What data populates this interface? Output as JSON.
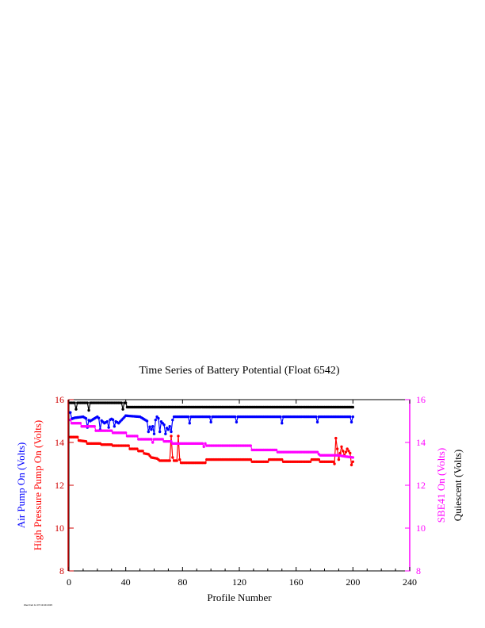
{
  "chart_data": {
    "type": "line",
    "title": "Time Series of Battery Potential (Float 6542)",
    "xlabel": "Profile Number",
    "ylabel_left": [
      "Air Pump On (Volts)",
      "High Pressure Pump On (Volts)"
    ],
    "ylabel_right": [
      "SBE41 On (Volts)",
      "Quiescent (Volts)"
    ],
    "xlim": [
      0,
      240
    ],
    "ylim_left": [
      8,
      16
    ],
    "ylim_right": [
      8,
      16
    ],
    "x_ticks": [
      0,
      40,
      80,
      120,
      160,
      200,
      240
    ],
    "y_ticks_left": [
      8,
      10,
      12,
      14,
      16
    ],
    "y_ticks_right": [
      8,
      10,
      12,
      14,
      16
    ],
    "grid": false,
    "series": [
      {
        "name": "Quiescent (Volts)",
        "color": "#000000",
        "axis": "right",
        "segments": [
          [
            1,
            15.85
          ],
          [
            40,
            15.85
          ],
          [
            40,
            15.65
          ],
          [
            200,
            15.65
          ]
        ],
        "spikes": [
          [
            5,
            15.55
          ],
          [
            14,
            15.5
          ],
          [
            38,
            15.55
          ]
        ]
      },
      {
        "name": "Air Pump On (Volts)",
        "color": "#0000ff",
        "axis": "left",
        "segments": [
          [
            1,
            15.4
          ],
          [
            2,
            15.1
          ],
          [
            4,
            15.15
          ],
          [
            10,
            15.2
          ],
          [
            15,
            15.0
          ],
          [
            20,
            15.2
          ],
          [
            25,
            14.9
          ],
          [
            30,
            15.1
          ],
          [
            35,
            14.9
          ],
          [
            40,
            15.25
          ],
          [
            50,
            15.2
          ],
          [
            55,
            15.0
          ],
          [
            58,
            14.6
          ],
          [
            62,
            15.2
          ],
          [
            66,
            14.9
          ],
          [
            70,
            14.6
          ],
          [
            74,
            15.2
          ],
          [
            200,
            15.2
          ]
        ],
        "spikes": [
          [
            13,
            14.7
          ],
          [
            22,
            14.6
          ],
          [
            28,
            14.7
          ],
          [
            32,
            14.75
          ],
          [
            56,
            14.5
          ],
          [
            60,
            14.4
          ],
          [
            64,
            14.5
          ],
          [
            68,
            14.4
          ],
          [
            72,
            14.5
          ],
          [
            85,
            14.9
          ],
          [
            100,
            14.95
          ],
          [
            118,
            14.95
          ],
          [
            150,
            14.9
          ],
          [
            175,
            14.95
          ],
          [
            199,
            14.95
          ]
        ]
      },
      {
        "name": "High Pressure Pump On (Volts)",
        "color": "#ff0000",
        "axis": "left",
        "segments": [
          [
            1,
            14.25
          ],
          [
            6,
            14.25
          ],
          [
            6,
            14.1
          ],
          [
            12,
            14.05
          ],
          [
            12,
            13.95
          ],
          [
            22,
            13.95
          ],
          [
            22,
            13.9
          ],
          [
            30,
            13.9
          ],
          [
            30,
            13.85
          ],
          [
            42,
            13.85
          ],
          [
            42,
            13.7
          ],
          [
            48,
            13.7
          ],
          [
            48,
            13.6
          ],
          [
            52,
            13.6
          ],
          [
            52,
            13.5
          ],
          [
            56,
            13.45
          ],
          [
            58,
            13.3
          ],
          [
            62,
            13.25
          ],
          [
            64,
            13.15
          ],
          [
            76,
            13.15
          ],
          [
            76,
            13.05
          ],
          [
            96,
            13.05
          ],
          [
            96,
            13.2
          ],
          [
            128,
            13.2
          ],
          [
            128,
            13.1
          ],
          [
            140,
            13.1
          ],
          [
            140,
            13.2
          ],
          [
            150,
            13.2
          ],
          [
            150,
            13.1
          ],
          [
            170,
            13.1
          ],
          [
            170,
            13.2
          ],
          [
            176,
            13.2
          ],
          [
            176,
            13.1
          ],
          [
            186,
            13.1
          ],
          [
            188,
            14.2
          ],
          [
            190,
            13.2
          ],
          [
            192,
            13.8
          ],
          [
            194,
            13.4
          ],
          [
            196,
            13.7
          ],
          [
            198,
            13.5
          ],
          [
            200,
            13.1
          ]
        ],
        "spikes": [
          [
            72,
            14.3
          ],
          [
            73,
            13.3
          ],
          [
            77,
            14.3
          ],
          [
            78,
            13.2
          ],
          [
            187,
            13.0
          ],
          [
            199,
            12.95
          ]
        ]
      },
      {
        "name": "SBE41 On (Volts)",
        "color": "#ff00ff",
        "axis": "right",
        "segments": [
          [
            1,
            15.05
          ],
          [
            2,
            14.9
          ],
          [
            8,
            14.9
          ],
          [
            8,
            14.75
          ],
          [
            18,
            14.75
          ],
          [
            18,
            14.55
          ],
          [
            30,
            14.55
          ],
          [
            30,
            14.45
          ],
          [
            40,
            14.45
          ],
          [
            40,
            14.3
          ],
          [
            48,
            14.3
          ],
          [
            48,
            14.15
          ],
          [
            66,
            14.15
          ],
          [
            66,
            14.05
          ],
          [
            72,
            14.05
          ],
          [
            72,
            13.95
          ],
          [
            96,
            13.95
          ],
          [
            96,
            13.85
          ],
          [
            128,
            13.85
          ],
          [
            128,
            13.65
          ],
          [
            146,
            13.65
          ],
          [
            146,
            13.55
          ],
          [
            176,
            13.55
          ],
          [
            176,
            13.4
          ],
          [
            190,
            13.4
          ],
          [
            194,
            13.35
          ],
          [
            200,
            13.3
          ]
        ],
        "spikes": [
          [
            59,
            14.0
          ],
          [
            95,
            13.8
          ],
          [
            176,
            13.45
          ]
        ]
      }
    ],
    "footnote": "Wed Feb 11 07:19:49 2015"
  }
}
